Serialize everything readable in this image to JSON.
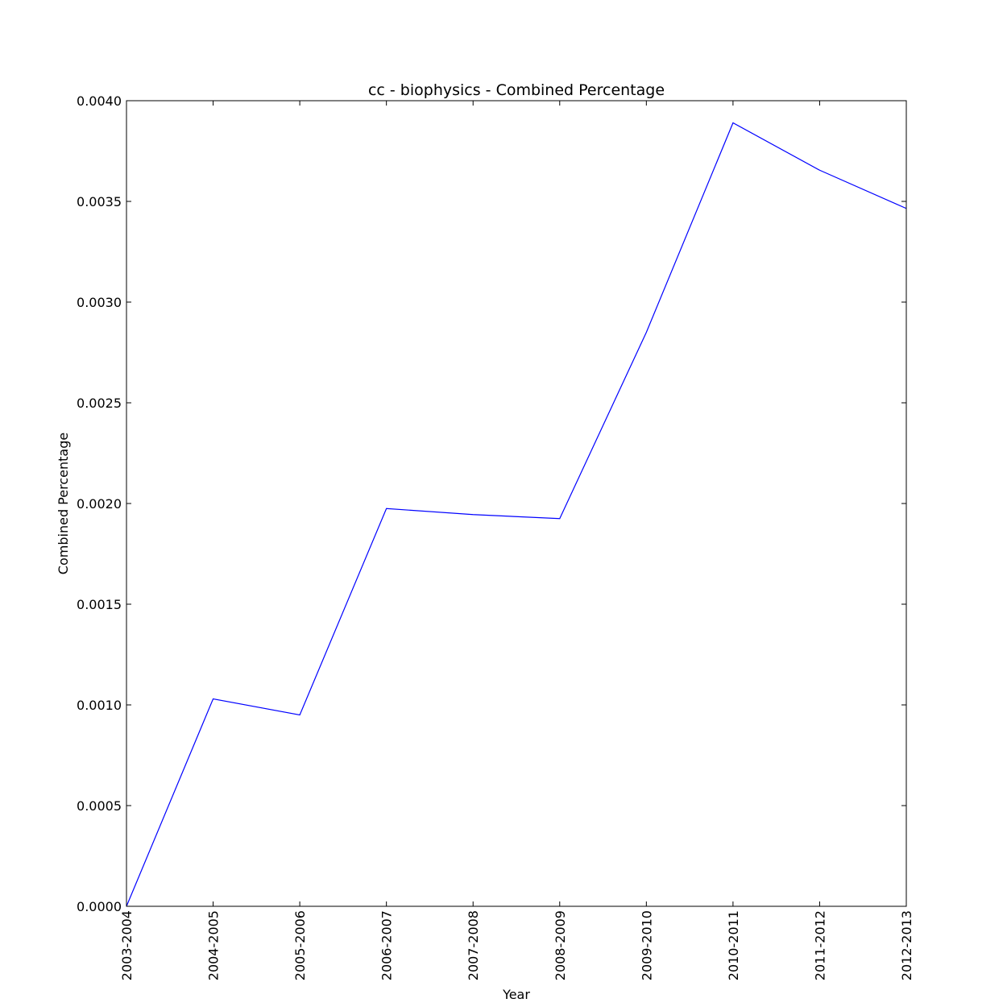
{
  "chart_data": {
    "type": "line",
    "title": "cc - biophysics - Combined Percentage",
    "xlabel": "Year",
    "ylabel": "Combined Percentage",
    "categories": [
      "2003-2004",
      "2004-2005",
      "2005-2006",
      "2006-2007",
      "2007-2008",
      "2008-2009",
      "2009-2010",
      "2010-2011",
      "2011-2012",
      "2012-2013"
    ],
    "series": [
      {
        "name": "Combined Percentage",
        "color": "#0000ff",
        "values": [
          0.0,
          0.00103,
          0.00095,
          0.001975,
          0.001945,
          0.001925,
          0.00285,
          0.00389,
          0.003655,
          0.003465
        ]
      }
    ],
    "ylim": [
      0,
      0.004
    ],
    "yticks": [
      "0.0000",
      "0.0005",
      "0.0010",
      "0.0015",
      "0.0020",
      "0.0025",
      "0.0030",
      "0.0035",
      "0.0040"
    ],
    "ytick_values": [
      0,
      0.0005,
      0.001,
      0.0015,
      0.002,
      0.0025,
      0.003,
      0.0035,
      0.004
    ],
    "grid": false,
    "legend": "none"
  }
}
